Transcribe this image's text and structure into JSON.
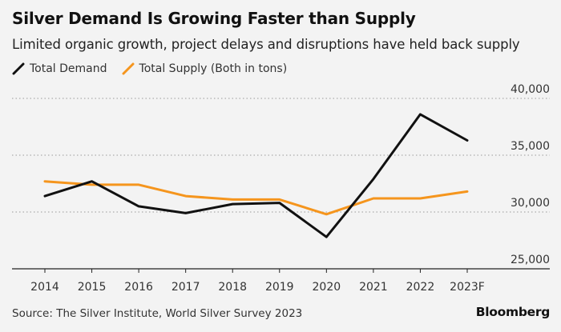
{
  "header": {
    "title": "Silver Demand Is Growing Faster than Supply",
    "subtitle": "Limited organic growth, project delays and disruptions have held back supply"
  },
  "footer": {
    "source": "Source: The Silver Institute, World Silver Survey 2023",
    "brand": "Bloomberg"
  },
  "colors": {
    "demand": "#111111",
    "supply": "#f5951d",
    "grid": "#9a9a9a",
    "axis": "#222222",
    "text": "#333333"
  },
  "chart_data": {
    "type": "line",
    "title": "Silver Demand Is Growing Faster than Supply",
    "subtitle": "Limited organic growth, project delays and disruptions have held back supply",
    "categories": [
      "2014",
      "2015",
      "2016",
      "2017",
      "2018",
      "2019",
      "2020",
      "2021",
      "2022",
      "2023F"
    ],
    "series": [
      {
        "name": "Total Demand",
        "legend_label": "Total Demand",
        "color": "#111111",
        "values": [
          31400,
          32700,
          30500,
          29900,
          30700,
          30800,
          27800,
          32900,
          38600,
          36300
        ]
      },
      {
        "name": "Total Supply",
        "legend_label": "Total Supply (Both in tons)",
        "color": "#f5951d",
        "values": [
          32700,
          32400,
          32400,
          31400,
          31100,
          31100,
          29800,
          31200,
          31200,
          31800
        ]
      }
    ],
    "yticks": [
      25000,
      30000,
      35000,
      40000
    ],
    "ytick_labels": [
      "25,000",
      "30,000",
      "35,000",
      "40,000"
    ],
    "ylim": [
      25000,
      40000
    ],
    "xlabel": "",
    "ylabel": "",
    "y_axis_side": "right",
    "grid": "horizontal-dotted",
    "legend_position": "top-left"
  }
}
